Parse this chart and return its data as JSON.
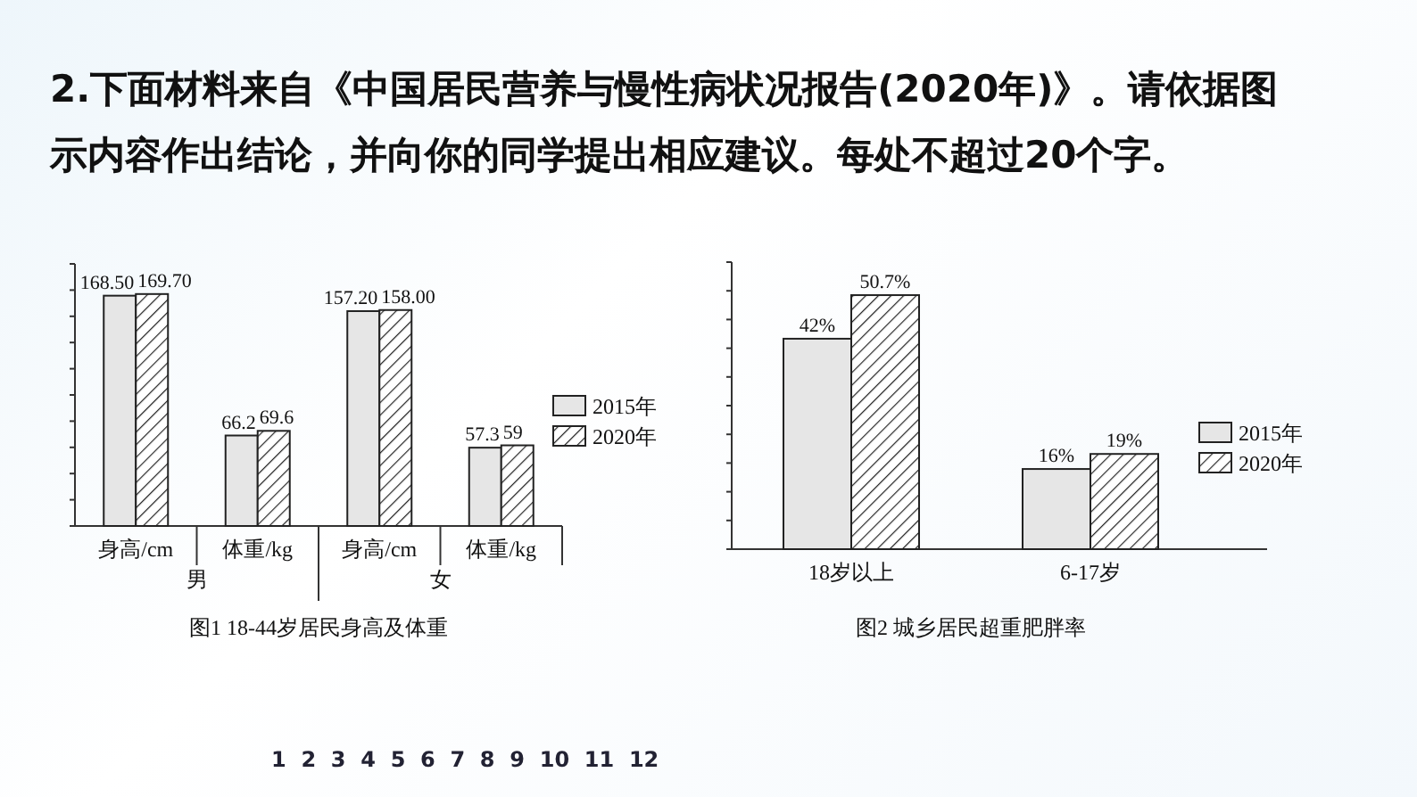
{
  "chart_data": [
    {
      "type": "other",
      "annotations": [
        "2.下面材料来自《中国居民营养与慢性病状况报告(2020年)》。请依据图示内容作出结论，并向你的同学提出相应建议。每处不超过20个字。",
        "1  2  3  4  5  6  7  8  9  10  11  12"
      ]
    },
    {
      "type": "bar",
      "title": "图1  18-44岁居民身高及体重",
      "categories": [
        "身高/cm",
        "体重/kg",
        "身高/cm",
        "体重/kg"
      ],
      "annotations": [
        "男",
        "女"
      ],
      "legend": "right",
      "tick_labels": "x",
      "series": [
        {
          "name": "2015年",
          "color": "#e6e6e6",
          "values": [
            168.5,
            66.2,
            157.2,
            57.3
          ],
          "value_labels": [
            "168.50",
            "66.2",
            "157.20",
            "57.3"
          ]
        },
        {
          "name": "2020年",
          "color": "#222222",
          "values": [
            169.7,
            69.6,
            158.0,
            59
          ],
          "value_labels": [
            "169.70",
            "69.6",
            "158.00",
            "59"
          ]
        }
      ]
    },
    {
      "type": "bar",
      "title": "图2  城乡居民超重肥胖率",
      "categories": [
        "18岁以上",
        "6-17岁"
      ],
      "legend": "right",
      "tick_labels": "x",
      "series": [
        {
          "name": "2015年",
          "color": "#e6e6e6",
          "values": [
            42,
            16
          ],
          "value_labels": [
            "42%",
            "16%"
          ]
        },
        {
          "name": "2020年",
          "color": "#222222",
          "values": [
            50.7,
            19
          ],
          "value_labels": [
            "50.7%",
            "19%"
          ]
        }
      ]
    }
  ]
}
